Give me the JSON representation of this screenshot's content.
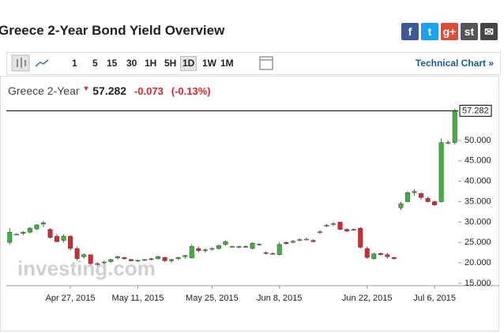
{
  "header": {
    "title": "Greece 2-Year Bond Yield Overview"
  },
  "toolbar": {
    "intervals": [
      "1",
      "5",
      "15",
      "30",
      "1H",
      "5H",
      "1D",
      "1W",
      "1M"
    ],
    "selected": "1D",
    "link": "Technical Chart »"
  },
  "quote": {
    "name": "Greece 2-Year",
    "price": "57.282",
    "change": "-0.073",
    "change_percent": "(-0.13%)"
  },
  "chart_data": {
    "type": "candlestick",
    "watermark": "investing.com",
    "last_price": 57.282,
    "last_price_label": "57.282",
    "categories": [
      null,
      null,
      null,
      null,
      null,
      null,
      null,
      null,
      null,
      "Apr 27, 2015",
      null,
      null,
      null,
      null,
      null,
      null,
      null,
      null,
      null,
      "May 11, 2015",
      null,
      null,
      null,
      null,
      null,
      null,
      null,
      null,
      null,
      null,
      "May 25, 2015",
      null,
      null,
      null,
      null,
      null,
      null,
      null,
      null,
      null,
      "Jun 8, 2015",
      null,
      null,
      null,
      null,
      null,
      null,
      null,
      null,
      null,
      null,
      null,
      null,
      "Jun 22, 2015",
      null,
      null,
      null,
      null,
      null,
      null,
      null,
      null,
      null,
      "Jul 6, 2015",
      null,
      null,
      null
    ],
    "open": [
      25.0,
      27.0,
      27.2,
      27.5,
      28.3,
      29.5,
      28.2,
      26.5,
      25.5,
      26.5,
      23.5,
      21.5,
      22.0,
      19.8,
      20.0,
      20.3,
      21.2,
      21.3,
      20.8,
      20.5,
      20.7,
      21.0,
      21.0,
      21.3,
      20.5,
      21.0,
      21.5,
      21.2,
      23.5,
      23.0,
      23.3,
      23.5,
      24.5,
      24.0,
      23.8,
      24.0,
      23.5,
      24.5,
      22.5,
      22.3,
      22.0,
      25.0,
      25.0,
      25.5,
      25.8,
      25.5,
      27.5,
      29.0,
      29.5,
      30.0,
      28.2,
      28.2,
      28.5,
      23.5,
      21.0,
      22.3,
      22.0,
      21.3,
      33.5,
      35.0,
      37.2,
      37.0,
      35.8,
      35.0,
      35.0,
      49.5,
      49.5
    ],
    "high": [
      28.5,
      27.3,
      27.8,
      28.8,
      29.5,
      30.2,
      28.5,
      27.0,
      27.0,
      26.8,
      24.0,
      22.3,
      22.0,
      20.2,
      20.5,
      21.0,
      21.8,
      21.5,
      21.0,
      20.8,
      21.0,
      21.2,
      21.8,
      21.5,
      21.0,
      21.5,
      22.0,
      24.5,
      24.0,
      23.5,
      23.8,
      24.5,
      25.5,
      24.3,
      24.2,
      24.3,
      25.0,
      24.8,
      22.8,
      22.6,
      25.0,
      25.2,
      25.6,
      26.0,
      26.2,
      25.8,
      28.0,
      29.5,
      30.0,
      30.0,
      28.5,
      28.4,
      28.8,
      24.0,
      22.5,
      22.6,
      22.4,
      21.5,
      35.0,
      37.5,
      38.0,
      37.3,
      36.2,
      35.3,
      50.5,
      50.0,
      57.8
    ],
    "low": [
      24.5,
      26.8,
      26.8,
      27.2,
      28.0,
      28.8,
      26.0,
      25.0,
      25.0,
      23.0,
      20.5,
      21.0,
      19.5,
      19.3,
      19.5,
      20.0,
      20.8,
      20.8,
      20.3,
      20.2,
      20.4,
      20.6,
      20.8,
      20.2,
      20.0,
      20.7,
      21.0,
      21.0,
      22.5,
      22.5,
      23.0,
      23.2,
      24.2,
      23.8,
      23.6,
      23.7,
      23.3,
      24.2,
      22.0,
      22.0,
      21.8,
      24.5,
      24.8,
      25.2,
      25.5,
      25.0,
      27.0,
      28.8,
      29.0,
      28.0,
      27.5,
      27.9,
      23.5,
      21.0,
      20.8,
      21.8,
      21.0,
      20.8,
      33.0,
      34.8,
      36.5,
      35.5,
      34.8,
      34.0,
      34.8,
      49.0,
      49.0
    ],
    "close": [
      27.5,
      27.0,
      27.5,
      28.5,
      29.3,
      29.8,
      26.2,
      25.2,
      26.5,
      23.5,
      21.0,
      22.0,
      19.8,
      19.6,
      20.2,
      20.8,
      21.5,
      21.0,
      20.5,
      20.6,
      20.8,
      20.9,
      21.5,
      20.5,
      20.8,
      21.3,
      21.8,
      24.0,
      23.0,
      23.2,
      23.5,
      24.2,
      25.2,
      24.0,
      24.0,
      23.9,
      24.8,
      24.6,
      22.3,
      22.2,
      24.5,
      24.7,
      25.3,
      25.7,
      25.8,
      25.2,
      27.6,
      29.2,
      29.6,
      28.2,
      27.8,
      28.1,
      23.8,
      21.3,
      22.2,
      22.0,
      21.5,
      21.0,
      34.5,
      37.2,
      37.5,
      36.0,
      35.0,
      34.2,
      49.5,
      49.5,
      57.282
    ],
    "up_color": "#3cb43c",
    "down_color": "#d9262f",
    "ylim": [
      14.4,
      58.9
    ],
    "yticks": [
      {
        "value": 15,
        "label": "15.000"
      },
      {
        "value": 20,
        "label": "20.000"
      },
      {
        "value": 25,
        "label": "25.000"
      },
      {
        "value": 30,
        "label": "30.000"
      },
      {
        "value": 35,
        "label": "35.000"
      },
      {
        "value": 40,
        "label": "40.000"
      },
      {
        "value": 45,
        "label": "45.000"
      },
      {
        "value": 50,
        "label": "50.000"
      }
    ]
  }
}
